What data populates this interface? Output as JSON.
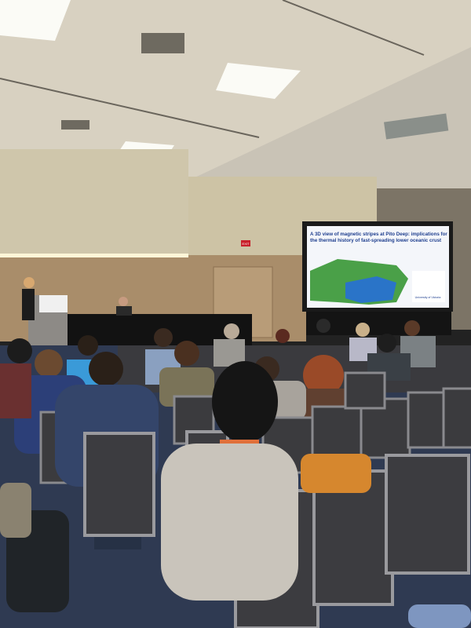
{
  "slide": {
    "title_lines": [
      "A 3D view of magnetic stripes at Pito Deep: implications for",
      "the thermal history of fast-spreading lower oceanic crust"
    ],
    "logo": "University of Victoria"
  },
  "sign": {
    "exit": "EXIT"
  }
}
